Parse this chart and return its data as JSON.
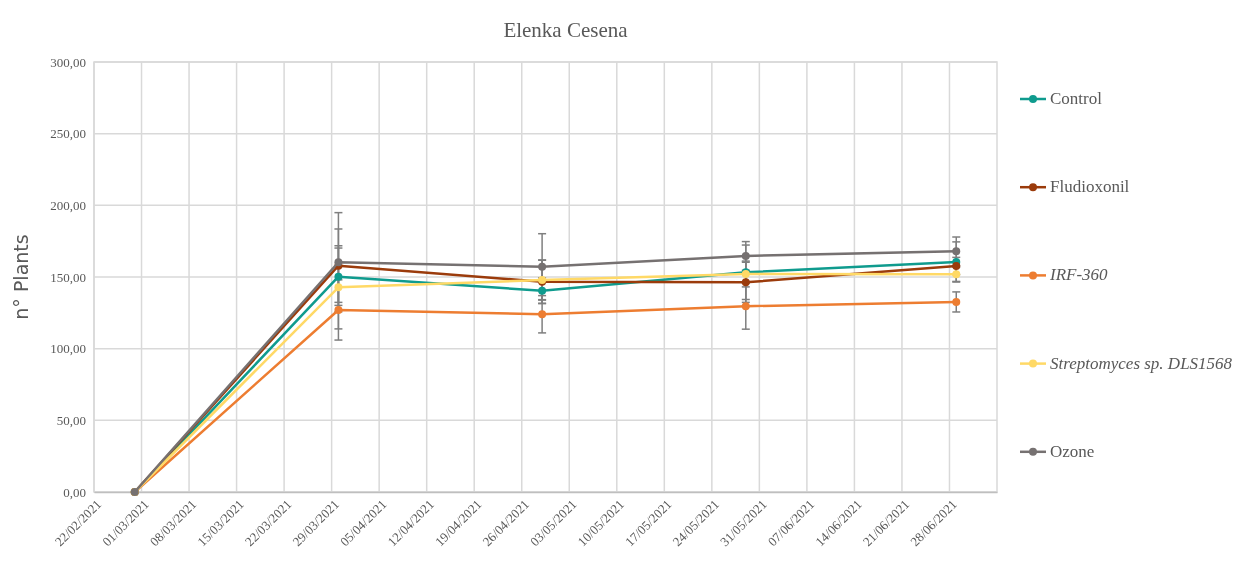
{
  "chart_data": {
    "type": "line",
    "title": "Elenka Cesena",
    "ylabel": "n° Plants",
    "x": [
      "2021-02-28",
      "2021-03-30",
      "2021-04-29",
      "2021-05-29",
      "2021-06-29"
    ],
    "series": [
      {
        "name": "Control",
        "color": "#0f9b8e",
        "values": [
          0,
          150.2,
          140.4,
          153.3,
          160.5
        ],
        "errors": [
          null,
          20,
          9,
          19,
          14
        ]
      },
      {
        "name": "Fludioxonil",
        "color": "#9b3b0b",
        "values": [
          0,
          157.9,
          146.7,
          146.3,
          157.7
        ],
        "errors": [
          null,
          25.6,
          15,
          14,
          6
        ]
      },
      {
        "name": "IRF-360",
        "color": "#ed7d31",
        "values": [
          0,
          127,
          124,
          129.6,
          132.6
        ],
        "errors": [
          null,
          21,
          13,
          16,
          7
        ]
      },
      {
        "name": "Streptomyces sp. DLS1568",
        "color": "#ffd966",
        "values": [
          0,
          142.8,
          147.9,
          152.1,
          151.9
        ],
        "errors": [
          null,
          29,
          14,
          9,
          5
        ]
      },
      {
        "name": "Ozone",
        "color": "#767171",
        "values": [
          0,
          160.3,
          157.2,
          164.7,
          167.9
        ],
        "errors": [
          null,
          34.6,
          23,
          10,
          10
        ]
      }
    ],
    "xlim": [
      "2021-02-22",
      "2021-07-05"
    ],
    "xticks": [
      {
        "value": "2021-02-22",
        "label": "22/02/2021"
      },
      {
        "value": "2021-03-01",
        "label": "01/03/2021"
      },
      {
        "value": "2021-03-08",
        "label": "08/03/2021"
      },
      {
        "value": "2021-03-15",
        "label": "15/03/2021"
      },
      {
        "value": "2021-03-22",
        "label": "22/03/2021"
      },
      {
        "value": "2021-03-29",
        "label": "29/03/2021"
      },
      {
        "value": "2021-04-05",
        "label": "05/04/2021"
      },
      {
        "value": "2021-04-12",
        "label": "12/04/2021"
      },
      {
        "value": "2021-04-19",
        "label": "19/04/2021"
      },
      {
        "value": "2021-04-26",
        "label": "26/04/2021"
      },
      {
        "value": "2021-05-03",
        "label": "03/05/2021"
      },
      {
        "value": "2021-05-10",
        "label": "10/05/2021"
      },
      {
        "value": "2021-05-17",
        "label": "17/05/2021"
      },
      {
        "value": "2021-05-24",
        "label": "24/05/2021"
      },
      {
        "value": "2021-05-31",
        "label": "31/05/2021"
      },
      {
        "value": "2021-06-07",
        "label": "07/06/2021"
      },
      {
        "value": "2021-06-14",
        "label": "14/06/2021"
      },
      {
        "value": "2021-06-21",
        "label": "21/06/2021"
      },
      {
        "value": "2021-06-28",
        "label": "28/06/2021"
      }
    ],
    "ylim": [
      0,
      300
    ],
    "yticks": [
      {
        "value": 0,
        "label": "0,00"
      },
      {
        "value": 50,
        "label": "50,00"
      },
      {
        "value": 100,
        "label": "100,00"
      },
      {
        "value": 150,
        "label": "150,00"
      },
      {
        "value": 200,
        "label": "200,00"
      },
      {
        "value": 250,
        "label": "250,00"
      },
      {
        "value": 300,
        "label": "300,00"
      }
    ],
    "grid": true,
    "legend": "right",
    "marker": "circle",
    "line_style": "solid"
  }
}
